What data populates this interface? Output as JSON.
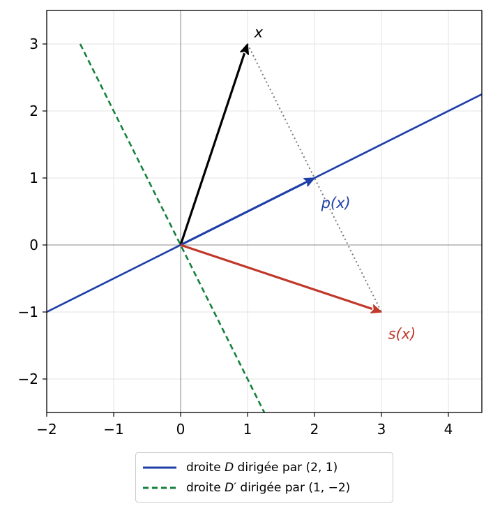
{
  "chart_data": {
    "type": "line",
    "title": "",
    "xlabel": "",
    "ylabel": "",
    "xlim": [
      -2,
      4.5
    ],
    "ylim": [
      -2.5,
      3.5
    ],
    "xticks": [
      -2,
      -1,
      0,
      1,
      2,
      3,
      4
    ],
    "yticks": [
      -2,
      -1,
      0,
      1,
      2,
      3
    ],
    "xtick_labels": [
      "−2",
      "−1",
      "0",
      "1",
      "2",
      "3",
      "4"
    ],
    "ytick_labels": [
      "−2",
      "−1",
      "0",
      "1",
      "2",
      "3"
    ],
    "grid": true,
    "legend_position": "bottom-center, below plot",
    "lines": [
      {
        "name": "droite D dirigée par (2,1)",
        "style": "solid",
        "color": "#1f3fa8",
        "points": [
          [
            -2,
            -1
          ],
          [
            4.5,
            2.25
          ]
        ]
      },
      {
        "name": "droite D′ dirigée par (1,−2)",
        "style": "dashed",
        "color": "#15803d",
        "points": [
          [
            -1.5,
            3
          ],
          [
            1.25,
            -2.5
          ]
        ]
      }
    ],
    "segments": [
      {
        "name": "projection-helper",
        "style": "dotted",
        "color": "#777777",
        "from": [
          1,
          3
        ],
        "to": [
          3,
          -1
        ]
      }
    ],
    "vectors": [
      {
        "name": "x",
        "label": "x",
        "from": [
          0,
          0
        ],
        "to": [
          1,
          3
        ],
        "color": "#000000"
      },
      {
        "name": "p(x)",
        "label": "p(x)",
        "from": [
          0,
          0
        ],
        "to": [
          2,
          1
        ],
        "color": "#1f3fa8"
      },
      {
        "name": "s(x)",
        "label": "s(x)",
        "from": [
          0,
          0
        ],
        "to": [
          3,
          -1
        ],
        "color": "#c0392b"
      }
    ],
    "annotations": [
      {
        "text": "x",
        "x": 1.1,
        "y": 3.1,
        "color": "#000000"
      },
      {
        "text": "p(x)",
        "x": 2.1,
        "y": 0.55,
        "color": "#1f3fa8"
      },
      {
        "text": "s(x)",
        "x": 3.1,
        "y": -1.4,
        "color": "#c0392b"
      }
    ]
  },
  "legend": {
    "line1": {
      "prefix": "droite ",
      "symbol": "D",
      "suffix": " dirigée par (2, 1)"
    },
    "line2": {
      "prefix": "droite ",
      "symbol": "D′",
      "suffix": " dirigée par (1, −2)"
    }
  }
}
